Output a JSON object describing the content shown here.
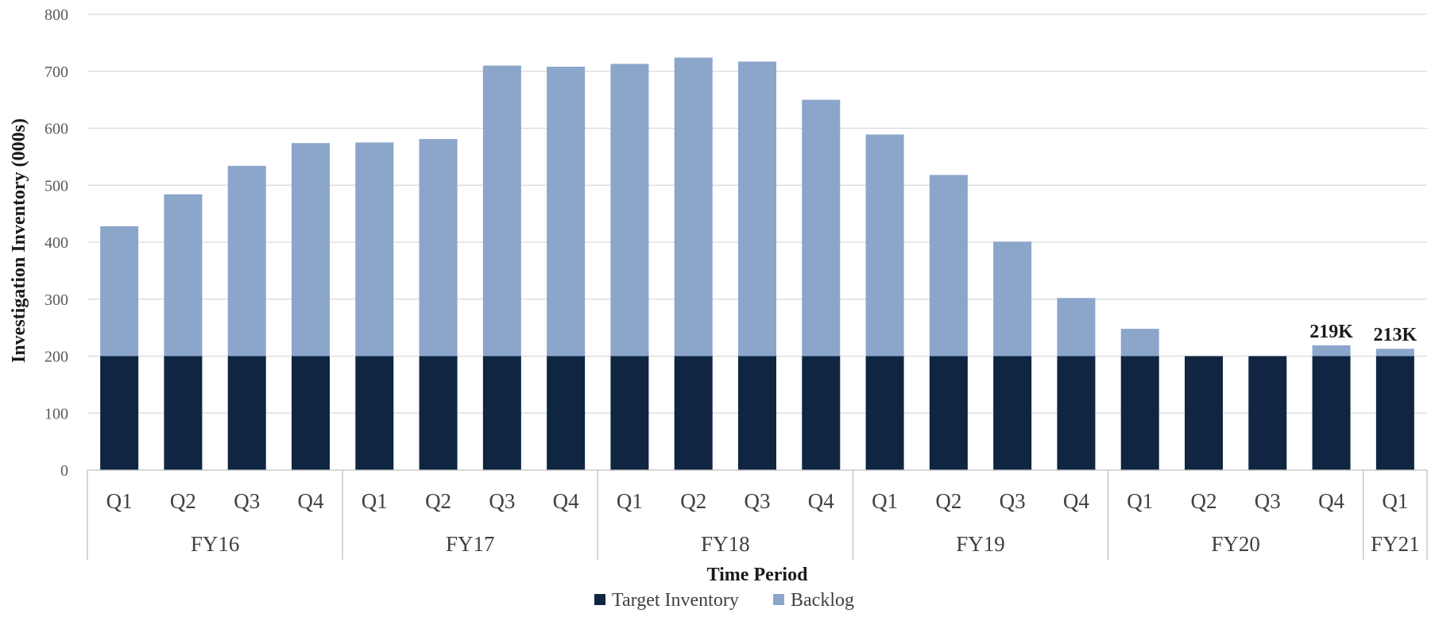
{
  "chart_data": {
    "type": "bar",
    "stacked": true,
    "title": "",
    "xlabel": "Time Period",
    "ylabel": "Investigation Inventory (000s)",
    "ylim": [
      0,
      800
    ],
    "yticks": [
      0,
      100,
      200,
      300,
      400,
      500,
      600,
      700,
      800
    ],
    "categories": [
      "Q1",
      "Q2",
      "Q3",
      "Q4",
      "Q1",
      "Q2",
      "Q3",
      "Q4",
      "Q1",
      "Q2",
      "Q3",
      "Q4",
      "Q1",
      "Q2",
      "Q3",
      "Q4",
      "Q1",
      "Q2",
      "Q3",
      "Q4",
      "Q1"
    ],
    "groups": [
      {
        "label": "FY16",
        "count": 4
      },
      {
        "label": "FY17",
        "count": 4
      },
      {
        "label": "FY18",
        "count": 4
      },
      {
        "label": "FY19",
        "count": 4
      },
      {
        "label": "FY20",
        "count": 4
      },
      {
        "label": "FY21",
        "count": 1
      }
    ],
    "series": [
      {
        "name": "Target Inventory",
        "color": "#0f2541",
        "values": [
          200,
          200,
          200,
          200,
          200,
          200,
          200,
          200,
          200,
          200,
          200,
          200,
          200,
          200,
          200,
          200,
          200,
          200,
          200,
          200,
          200
        ]
      },
      {
        "name": "Backlog",
        "color": "#8ba5cb",
        "values": [
          228,
          284,
          334,
          374,
          375,
          381,
          510,
          508,
          513,
          524,
          517,
          450,
          389,
          318,
          201,
          102,
          48,
          0,
          0,
          19,
          13
        ]
      }
    ],
    "data_labels": [
      {
        "index": 19,
        "text": "219K"
      },
      {
        "index": 20,
        "text": "213K"
      }
    ],
    "grid": true,
    "legend_position": "bottom"
  }
}
